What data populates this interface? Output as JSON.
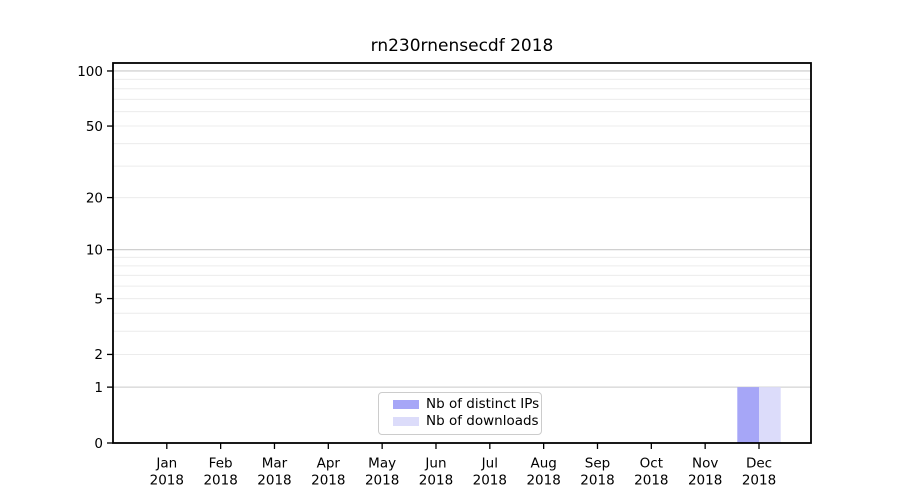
{
  "chart_data": {
    "type": "bar",
    "title": "rn230rnensecdf 2018",
    "categories": [
      "Jan",
      "Feb",
      "Mar",
      "Apr",
      "May",
      "Jun",
      "Jul",
      "Aug",
      "Sep",
      "Oct",
      "Nov",
      "Dec"
    ],
    "category_year": "2018",
    "series": [
      {
        "name": "Nb of distinct IPs",
        "color": "#a6a6f7",
        "values": [
          0,
          0,
          0,
          0,
          0,
          0,
          0,
          0,
          0,
          0,
          0,
          1
        ]
      },
      {
        "name": "Nb of downloads",
        "color": "#dcdcfa",
        "values": [
          0,
          0,
          0,
          0,
          0,
          0,
          0,
          0,
          0,
          0,
          0,
          1
        ]
      }
    ],
    "yscale": "log1p",
    "ylim": [
      0,
      110.5
    ],
    "yticks": [
      0,
      1,
      2,
      5,
      10,
      20,
      50,
      100
    ],
    "major_gridlines": [
      1,
      10,
      100
    ],
    "minor_gridlines": [
      2,
      3,
      4,
      5,
      6,
      7,
      8,
      9,
      20,
      30,
      40,
      50,
      60,
      70,
      80,
      90
    ],
    "grid": true,
    "legend_position": "lower center",
    "colors": {
      "major_grid": "#c9c9c9",
      "minor_grid": "#ececec",
      "axis": "#000000",
      "background": "#ffffff"
    }
  }
}
